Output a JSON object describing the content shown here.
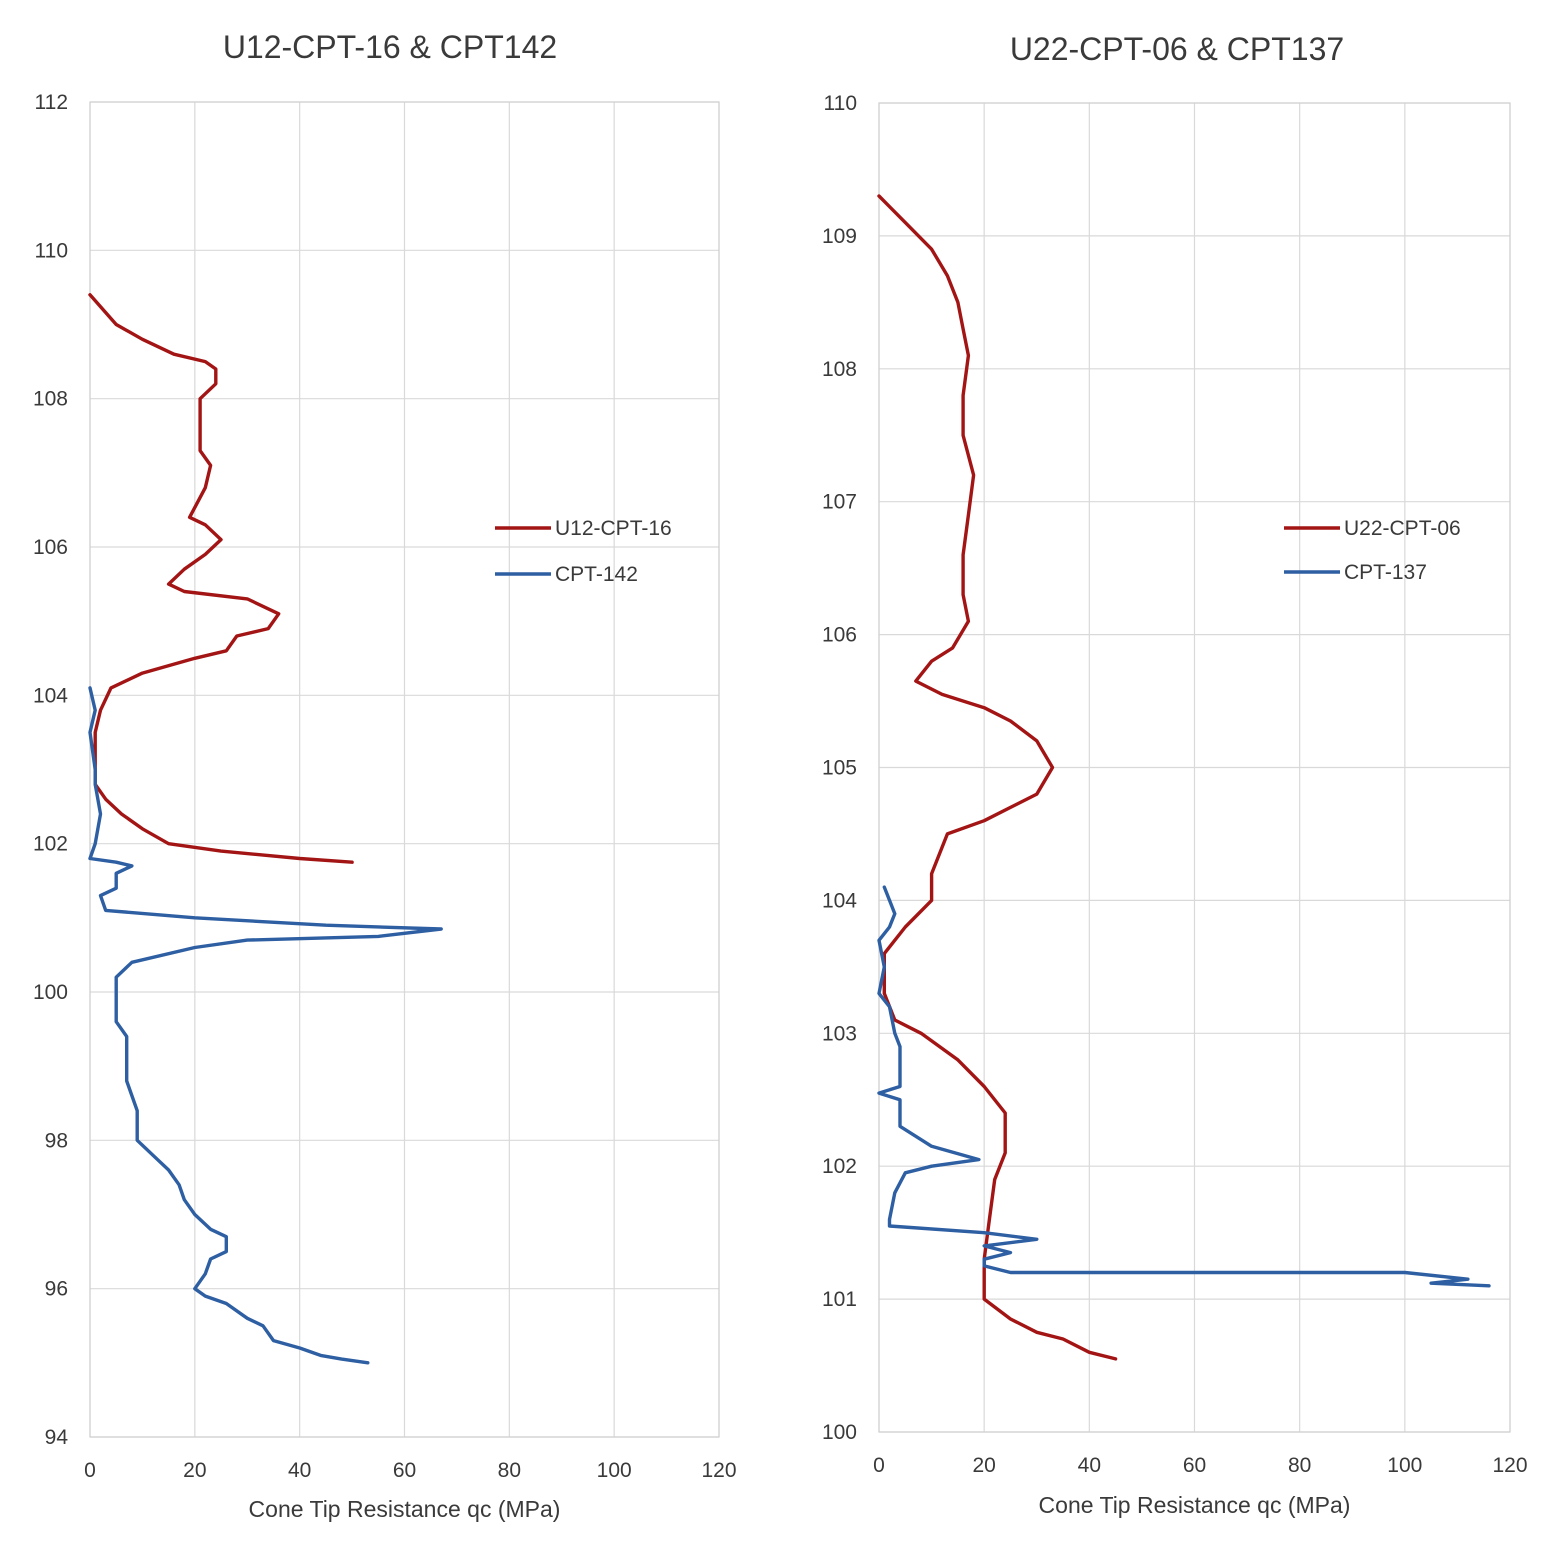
{
  "chart_data": [
    {
      "type": "line",
      "title": "U12-CPT-16 & CPT142",
      "xlabel": "Cone Tip Resistance qc (MPa)",
      "ylabel": "",
      "xlim": [
        0,
        120
      ],
      "ylim": [
        94,
        112
      ],
      "x_ticks": [
        "0",
        "20",
        "40",
        "60",
        "80",
        "100",
        "120"
      ],
      "y_ticks": [
        "112",
        "110",
        "108",
        "106",
        "104",
        "102",
        "100",
        "98",
        "96",
        "94"
      ],
      "grid": true,
      "legend_position": "right-middle",
      "series": [
        {
          "name": "U12-CPT-16",
          "color": "#a31515",
          "points": [
            [
              0,
              109.4
            ],
            [
              5,
              109.0
            ],
            [
              10,
              108.8
            ],
            [
              16,
              108.6
            ],
            [
              22,
              108.5
            ],
            [
              24,
              108.4
            ],
            [
              24,
              108.2
            ],
            [
              21,
              108.0
            ],
            [
              21,
              107.6
            ],
            [
              21,
              107.3
            ],
            [
              23,
              107.1
            ],
            [
              22,
              106.8
            ],
            [
              19,
              106.4
            ],
            [
              22,
              106.3
            ],
            [
              25,
              106.1
            ],
            [
              22,
              105.9
            ],
            [
              18,
              105.7
            ],
            [
              15,
              105.5
            ],
            [
              18,
              105.4
            ],
            [
              30,
              105.3
            ],
            [
              36,
              105.1
            ],
            [
              34,
              104.9
            ],
            [
              28,
              104.8
            ],
            [
              26,
              104.6
            ],
            [
              20,
              104.5
            ],
            [
              10,
              104.3
            ],
            [
              4,
              104.1
            ],
            [
              2,
              103.8
            ],
            [
              1,
              103.5
            ],
            [
              1,
              103.0
            ],
            [
              1,
              102.8
            ],
            [
              3,
              102.6
            ],
            [
              6,
              102.4
            ],
            [
              10,
              102.2
            ],
            [
              15,
              102.0
            ],
            [
              25,
              101.9
            ],
            [
              40,
              101.8
            ],
            [
              50,
              101.75
            ]
          ]
        },
        {
          "name": "CPT-142",
          "color": "#2e5fa3",
          "points": [
            [
              0,
              104.1
            ],
            [
              1,
              103.8
            ],
            [
              0,
              103.5
            ],
            [
              1,
              103.0
            ],
            [
              1,
              102.8
            ],
            [
              2,
              102.4
            ],
            [
              1,
              102.0
            ],
            [
              0,
              101.8
            ],
            [
              5,
              101.75
            ],
            [
              8,
              101.7
            ],
            [
              5,
              101.6
            ],
            [
              5,
              101.4
            ],
            [
              2,
              101.3
            ],
            [
              3,
              101.1
            ],
            [
              20,
              101.0
            ],
            [
              45,
              100.9
            ],
            [
              67,
              100.85
            ],
            [
              55,
              100.75
            ],
            [
              30,
              100.7
            ],
            [
              20,
              100.6
            ],
            [
              8,
              100.4
            ],
            [
              5,
              100.2
            ],
            [
              5,
              100.0
            ],
            [
              5,
              99.6
            ],
            [
              7,
              99.4
            ],
            [
              7,
              98.8
            ],
            [
              9,
              98.4
            ],
            [
              9,
              98.0
            ],
            [
              12,
              97.8
            ],
            [
              15,
              97.6
            ],
            [
              17,
              97.4
            ],
            [
              18,
              97.2
            ],
            [
              20,
              97.0
            ],
            [
              23,
              96.8
            ],
            [
              26,
              96.7
            ],
            [
              26,
              96.5
            ],
            [
              23,
              96.4
            ],
            [
              22,
              96.2
            ],
            [
              20,
              96.0
            ],
            [
              22,
              95.9
            ],
            [
              26,
              95.8
            ],
            [
              30,
              95.6
            ],
            [
              33,
              95.5
            ],
            [
              35,
              95.3
            ],
            [
              40,
              95.2
            ],
            [
              44,
              95.1
            ],
            [
              48,
              95.05
            ],
            [
              53,
              95.0
            ]
          ]
        }
      ]
    },
    {
      "type": "line",
      "title": "U22-CPT-06 & CPT137",
      "xlabel": "Cone Tip Resistance qc (MPa)",
      "ylabel": "",
      "xlim": [
        0,
        120
      ],
      "ylim": [
        100,
        110
      ],
      "x_ticks": [
        "0",
        "20",
        "40",
        "60",
        "80",
        "100",
        "120"
      ],
      "y_ticks": [
        "110",
        "109",
        "108",
        "107",
        "106",
        "105",
        "104",
        "103",
        "102",
        "101",
        "100"
      ],
      "grid": true,
      "legend_position": "right-middle",
      "series": [
        {
          "name": "U22-CPT-06",
          "color": "#a31515",
          "points": [
            [
              0,
              109.3
            ],
            [
              5,
              109.1
            ],
            [
              10,
              108.9
            ],
            [
              13,
              108.7
            ],
            [
              15,
              108.5
            ],
            [
              16,
              108.3
            ],
            [
              17,
              108.1
            ],
            [
              16,
              107.8
            ],
            [
              16,
              107.5
            ],
            [
              18,
              107.2
            ],
            [
              17,
              106.9
            ],
            [
              16,
              106.6
            ],
            [
              16,
              106.3
            ],
            [
              17,
              106.1
            ],
            [
              14,
              105.9
            ],
            [
              10,
              105.8
            ],
            [
              7,
              105.65
            ],
            [
              12,
              105.55
            ],
            [
              20,
              105.45
            ],
            [
              25,
              105.35
            ],
            [
              30,
              105.2
            ],
            [
              33,
              105.0
            ],
            [
              30,
              104.8
            ],
            [
              25,
              104.7
            ],
            [
              20,
              104.6
            ],
            [
              13,
              104.5
            ],
            [
              12,
              104.4
            ],
            [
              10,
              104.2
            ],
            [
              10,
              104.0
            ],
            [
              5,
              103.8
            ],
            [
              1,
              103.6
            ],
            [
              1,
              103.3
            ],
            [
              3,
              103.1
            ],
            [
              8,
              103.0
            ],
            [
              15,
              102.8
            ],
            [
              20,
              102.6
            ],
            [
              24,
              102.4
            ],
            [
              24,
              102.1
            ],
            [
              22,
              101.9
            ],
            [
              21,
              101.6
            ],
            [
              20,
              101.3
            ],
            [
              20,
              101.0
            ],
            [
              25,
              100.85
            ],
            [
              30,
              100.75
            ],
            [
              35,
              100.7
            ],
            [
              40,
              100.6
            ],
            [
              45,
              100.55
            ]
          ]
        },
        {
          "name": "CPT-137",
          "color": "#2e5fa3",
          "points": [
            [
              1,
              104.1
            ],
            [
              3,
              103.9
            ],
            [
              2,
              103.8
            ],
            [
              0,
              103.7
            ],
            [
              1,
              103.5
            ],
            [
              0,
              103.3
            ],
            [
              2,
              103.2
            ],
            [
              3,
              103.0
            ],
            [
              4,
              102.9
            ],
            [
              4,
              102.6
            ],
            [
              0,
              102.55
            ],
            [
              4,
              102.5
            ],
            [
              4,
              102.3
            ],
            [
              10,
              102.15
            ],
            [
              19,
              102.05
            ],
            [
              10,
              102.0
            ],
            [
              5,
              101.95
            ],
            [
              3,
              101.8
            ],
            [
              2,
              101.6
            ],
            [
              2,
              101.55
            ],
            [
              20,
              101.5
            ],
            [
              30,
              101.45
            ],
            [
              20,
              101.4
            ],
            [
              25,
              101.35
            ],
            [
              20,
              101.3
            ],
            [
              20,
              101.25
            ],
            [
              25,
              101.2
            ],
            [
              60,
              101.2
            ],
            [
              100,
              101.2
            ],
            [
              112,
              101.15
            ],
            [
              105,
              101.12
            ],
            [
              116,
              101.1
            ]
          ]
        }
      ]
    }
  ]
}
